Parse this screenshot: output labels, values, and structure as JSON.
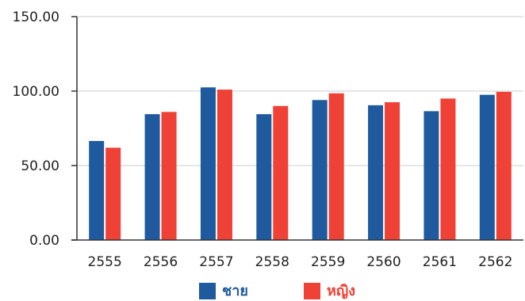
{
  "chart_data": {
    "type": "bar",
    "title": "",
    "xlabel": "",
    "ylabel": "",
    "categories": [
      "2555",
      "2556",
      "2557",
      "2558",
      "2559",
      "2560",
      "2561",
      "2562"
    ],
    "series": [
      {
        "name": "ชาย",
        "color": "#1f5a9e",
        "values": [
          66.5,
          84.5,
          102.5,
          84.5,
          94,
          90.5,
          86.5,
          97.5
        ]
      },
      {
        "name": "หญิง",
        "color": "#ef4136",
        "values": [
          62,
          86,
          101,
          90,
          98.5,
          92.5,
          95,
          99.5
        ]
      }
    ],
    "ylim": [
      0,
      150
    ],
    "yticks": [
      "0.00",
      "50.00",
      "100.00",
      "150.00"
    ],
    "ytick_values": [
      0,
      50,
      100,
      150
    ],
    "grid": true,
    "legend_position": "bottom-center"
  }
}
